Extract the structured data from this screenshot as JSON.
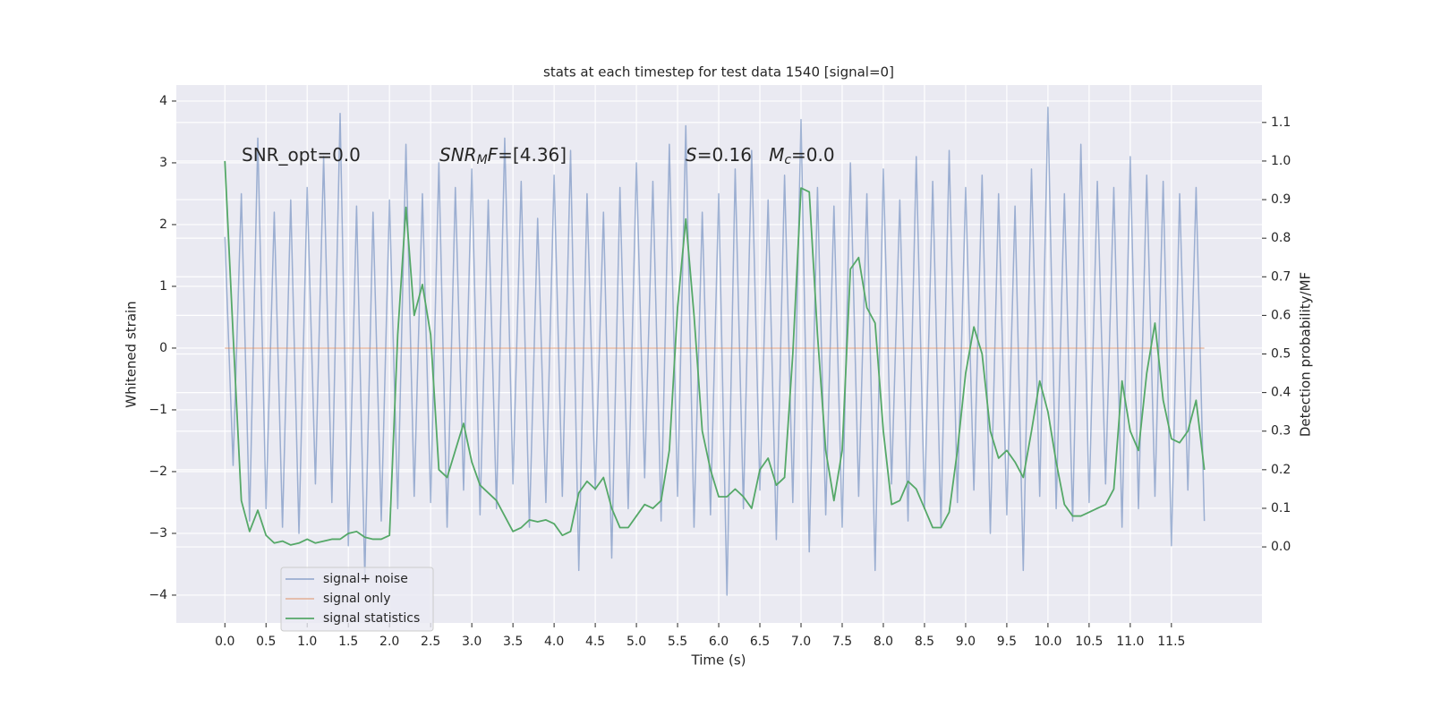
{
  "chart_data": {
    "type": "line",
    "title": "stats at each timestep for test data 1540 [signal=0]",
    "xlabel": "Time (s)",
    "ylabel": "Whitened strain",
    "y2label": "Detection probability/MF",
    "xlim": [
      -0.59,
      12.6
    ],
    "ylim": [
      -4.45,
      4.26
    ],
    "y2lim": [
      -0.197,
      1.197
    ],
    "xticks": [
      {
        "value": 0,
        "label": "0.0"
      },
      0.5,
      {
        "value": 1,
        "label": "1.0"
      },
      1.5,
      {
        "value": 2,
        "label": "2.0"
      },
      2.5,
      {
        "value": 3,
        "label": "3.0"
      },
      3.5,
      {
        "value": 4,
        "label": "4.0"
      },
      4.5,
      {
        "value": 5,
        "label": "5.0"
      },
      5.5,
      {
        "value": 6,
        "label": "6.0"
      },
      6.5,
      {
        "value": 7,
        "label": "7.0"
      },
      7.5,
      {
        "value": 8,
        "label": "8.0"
      },
      8.5,
      {
        "value": 9,
        "label": "9.0"
      },
      9.5,
      {
        "value": 10,
        "label": "10.0"
      },
      10.5,
      {
        "value": 11,
        "label": "11.0"
      },
      11.5
    ],
    "yticks": [
      {
        "value": -4,
        "label": "−4"
      },
      {
        "value": -3,
        "label": "−3"
      },
      {
        "value": -2,
        "label": "−2"
      },
      {
        "value": -1,
        "label": "−1"
      },
      0,
      1,
      2,
      3,
      4
    ],
    "y2ticks": [
      {
        "value": 0,
        "label": "0.0"
      },
      0.1,
      0.2,
      0.3,
      0.4,
      0.5,
      0.6,
      0.7,
      0.8,
      0.9,
      {
        "value": 1,
        "label": "1.0"
      },
      1.1
    ],
    "grid": true,
    "legend": "lower left",
    "annotations": [
      [
        {
          "text": "SNR_opt=0.0",
          "style": "normal"
        }
      ],
      [
        {
          "text": "SNR",
          "style": "italic"
        },
        {
          "text": "M",
          "style": "sub"
        },
        {
          "text": "F",
          "style": "italic"
        },
        {
          "text": "=[4.36]",
          "style": "normal"
        }
      ],
      [
        {
          "text": "S",
          "style": "italic"
        },
        {
          "text": "=0.16   ",
          "style": "normal"
        },
        {
          "text": "M",
          "style": "italic"
        },
        {
          "text": "c",
          "style": "sub"
        },
        {
          "text": "=0.0",
          "style": "normal"
        }
      ]
    ],
    "x": [
      0,
      0.1,
      0.2,
      0.3,
      0.4,
      0.5,
      0.6,
      0.7,
      0.8,
      0.9,
      1,
      1.1,
      1.2,
      1.3,
      1.4,
      1.5,
      1.6,
      1.7,
      1.8,
      1.9,
      2,
      2.1,
      2.2,
      2.3,
      2.4,
      2.5,
      2.6,
      2.7,
      2.8,
      2.9,
      3,
      3.1,
      3.2,
      3.3,
      3.4,
      3.5,
      3.6,
      3.7,
      3.8,
      3.9,
      4,
      4.1,
      4.2,
      4.3,
      4.4,
      4.5,
      4.6,
      4.7,
      4.8,
      4.9,
      5,
      5.1,
      5.2,
      5.3,
      5.4,
      5.5,
      5.6,
      5.7,
      5.8,
      5.9,
      6,
      6.1,
      6.2,
      6.3,
      6.4,
      6.5,
      6.6,
      6.7,
      6.8,
      6.9,
      7,
      7.1,
      7.2,
      7.3,
      7.4,
      7.5,
      7.6,
      7.7,
      7.8,
      7.9,
      8,
      8.1,
      8.2,
      8.3,
      8.4,
      8.5,
      8.6,
      8.7,
      8.8,
      8.9,
      9,
      9.1,
      9.2,
      9.3,
      9.4,
      9.5,
      9.6,
      9.7,
      9.8,
      9.9,
      10,
      10.1,
      10.2,
      10.3,
      10.4,
      10.5,
      10.6,
      10.7,
      10.8,
      10.9,
      11,
      11.1,
      11.2,
      11.3,
      11.4,
      11.5,
      11.6,
      11.7,
      11.8,
      11.9
    ],
    "series": [
      {
        "name": "signal+ noise",
        "color": "#4c72b0",
        "opacity": 0.5,
        "axis": "y",
        "values": [
          1.8,
          -1.9,
          2.5,
          -2.8,
          3.4,
          -2.6,
          2.2,
          -2.9,
          2.4,
          -3.0,
          2.6,
          -2.2,
          3.1,
          -2.5,
          3.8,
          -3.2,
          2.3,
          -3.7,
          2.2,
          -2.8,
          2.4,
          -2.6,
          3.3,
          -2.4,
          2.5,
          -2.5,
          3.0,
          -2.9,
          2.6,
          -2.3,
          2.9,
          -2.7,
          2.4,
          -2.6,
          3.4,
          -2.2,
          2.7,
          -2.9,
          2.1,
          -2.5,
          2.8,
          -2.4,
          3.2,
          -3.6,
          2.5,
          -2.3,
          2.2,
          -3.4,
          2.6,
          -2.6,
          3.0,
          -2.1,
          2.7,
          -2.8,
          3.3,
          -2.4,
          3.6,
          -2.9,
          2.2,
          -2.7,
          2.5,
          -4.0,
          2.9,
          -2.6,
          3.2,
          -2.3,
          2.4,
          -3.1,
          2.8,
          -2.5,
          3.7,
          -3.3,
          2.6,
          -2.7,
          2.3,
          -2.9,
          3.0,
          -2.4,
          2.5,
          -3.6,
          2.9,
          -2.2,
          2.4,
          -2.8,
          3.1,
          -2.6,
          2.7,
          -2.9,
          3.2,
          -2.5,
          2.6,
          -2.3,
          2.8,
          -3.0,
          2.5,
          -2.7,
          2.3,
          -3.6,
          2.9,
          -2.4,
          3.9,
          -2.6,
          2.5,
          -2.8,
          3.3,
          -2.5,
          2.7,
          -2.2,
          2.6,
          -2.9,
          3.1,
          -2.6,
          2.8,
          -2.4,
          2.7,
          -3.2,
          2.5,
          -2.3,
          2.6,
          -2.8
        ]
      },
      {
        "name": "signal only",
        "color": "#dd8452",
        "opacity": 0.5,
        "axis": "y",
        "values": [
          0,
          0,
          0,
          0,
          0,
          0,
          0,
          0,
          0,
          0,
          0,
          0,
          0,
          0,
          0,
          0,
          0,
          0,
          0,
          0,
          0,
          0,
          0,
          0,
          0,
          0,
          0,
          0,
          0,
          0,
          0,
          0,
          0,
          0,
          0,
          0,
          0,
          0,
          0,
          0,
          0,
          0,
          0,
          0,
          0,
          0,
          0,
          0,
          0,
          0,
          0,
          0,
          0,
          0,
          0,
          0,
          0,
          0,
          0,
          0,
          0,
          0,
          0,
          0,
          0,
          0,
          0,
          0,
          0,
          0,
          0,
          0,
          0,
          0,
          0,
          0,
          0,
          0,
          0,
          0,
          0,
          0,
          0,
          0,
          0,
          0,
          0,
          0,
          0,
          0,
          0,
          0,
          0,
          0,
          0,
          0,
          0,
          0,
          0,
          0,
          0,
          0,
          0,
          0,
          0,
          0,
          0,
          0,
          0,
          0,
          0,
          0,
          0,
          0,
          0,
          0,
          0,
          0,
          0,
          0
        ]
      },
      {
        "name": "signal statistics",
        "color": "#55a868",
        "opacity": 1,
        "axis": "y2",
        "values": [
          1.0,
          0.55,
          0.12,
          0.04,
          0.095,
          0.03,
          0.01,
          0.015,
          0.005,
          0.01,
          0.02,
          0.01,
          0.015,
          0.02,
          0.02,
          0.035,
          0.04,
          0.025,
          0.02,
          0.02,
          0.03,
          0.55,
          0.88,
          0.6,
          0.68,
          0.55,
          0.2,
          0.18,
          0.25,
          0.32,
          0.22,
          0.16,
          0.14,
          0.12,
          0.08,
          0.04,
          0.05,
          0.07,
          0.065,
          0.07,
          0.06,
          0.03,
          0.04,
          0.14,
          0.17,
          0.15,
          0.18,
          0.1,
          0.05,
          0.05,
          0.08,
          0.11,
          0.1,
          0.12,
          0.25,
          0.62,
          0.85,
          0.6,
          0.3,
          0.2,
          0.13,
          0.13,
          0.15,
          0.13,
          0.1,
          0.2,
          0.23,
          0.16,
          0.18,
          0.5,
          0.93,
          0.92,
          0.55,
          0.25,
          0.12,
          0.25,
          0.72,
          0.75,
          0.62,
          0.58,
          0.3,
          0.11,
          0.12,
          0.17,
          0.15,
          0.1,
          0.05,
          0.05,
          0.09,
          0.25,
          0.45,
          0.57,
          0.5,
          0.3,
          0.23,
          0.25,
          0.22,
          0.18,
          0.3,
          0.43,
          0.35,
          0.22,
          0.11,
          0.08,
          0.08,
          0.09,
          0.1,
          0.11,
          0.15,
          0.43,
          0.3,
          0.25,
          0.45,
          0.58,
          0.38,
          0.28,
          0.27,
          0.3,
          0.38,
          0.2
        ]
      }
    ]
  }
}
